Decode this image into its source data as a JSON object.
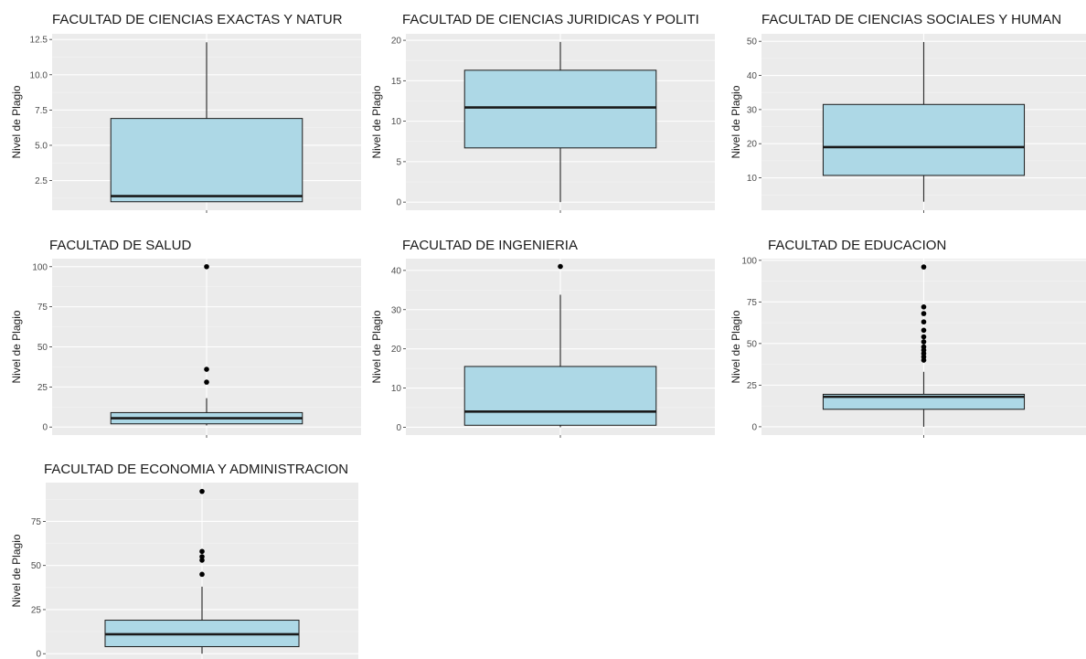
{
  "chart_data": [
    {
      "type": "boxplot",
      "title": "FACULTAD DE CIENCIAS EXACTAS Y NATUR",
      "ylabel": "Nivel de Plagio",
      "ylim": [
        0.4,
        12.9
      ],
      "yticks": [
        2.5,
        5.0,
        7.5,
        10.0,
        12.5
      ],
      "ytick_labels": [
        "2.5",
        "5.0",
        "7.5",
        "10.0",
        "12.5"
      ],
      "box": {
        "min": 1.0,
        "q1": 1.0,
        "median": 1.4,
        "q3": 6.9,
        "max": 12.3
      },
      "outliers": []
    },
    {
      "type": "boxplot",
      "title": "FACULTAD DE CIENCIAS JURIDICAS Y POLITI",
      "ylabel": "Nivel de Plagio",
      "ylim": [
        -1,
        20.8
      ],
      "yticks": [
        0,
        5,
        10,
        15,
        20
      ],
      "ytick_labels": [
        "0",
        "5",
        "10",
        "15",
        "20"
      ],
      "box": {
        "min": 0,
        "q1": 6.7,
        "median": 11.7,
        "q3": 16.3,
        "max": 19.8
      },
      "outliers": []
    },
    {
      "type": "boxplot",
      "title": "FACULTAD DE CIENCIAS SOCIALES Y HUMAN",
      "ylabel": "Nivel de Plagio",
      "ylim": [
        0.5,
        52.2
      ],
      "yticks": [
        10,
        20,
        30,
        40,
        50
      ],
      "ytick_labels": [
        "10",
        "20",
        "30",
        "40",
        "50"
      ],
      "box": {
        "min": 3.0,
        "q1": 10.7,
        "median": 19.0,
        "q3": 31.5,
        "max": 49.8
      },
      "outliers": []
    },
    {
      "type": "boxplot",
      "title": "FACULTAD DE SALUD",
      "ylabel": "Nivel de Plagio",
      "ylim": [
        -5,
        105
      ],
      "yticks": [
        0,
        25,
        50,
        75,
        100
      ],
      "ytick_labels": [
        "0",
        "25",
        "50",
        "75",
        "100"
      ],
      "box": {
        "min": 1.0,
        "q1": 2.0,
        "median": 5.5,
        "q3": 9.0,
        "max": 18.0
      },
      "outliers": [
        28,
        36,
        100
      ]
    },
    {
      "type": "boxplot",
      "title": "FACULTAD DE INGENIERIA",
      "ylabel": "Nivel de Plagio",
      "ylim": [
        -2,
        43
      ],
      "yticks": [
        0,
        10,
        20,
        30,
        40
      ],
      "ytick_labels": [
        "0",
        "10",
        "20",
        "30",
        "40"
      ],
      "box": {
        "min": 0,
        "q1": 0.5,
        "median": 4.0,
        "q3": 15.5,
        "max": 33.8
      },
      "outliers": [
        41
      ]
    },
    {
      "type": "boxplot",
      "title": "FACULTAD DE EDUCACION",
      "ylabel": "Nivel de Plagio",
      "ylim": [
        -5,
        101
      ],
      "yticks": [
        0,
        25,
        50,
        75,
        100
      ],
      "ytick_labels": [
        "0",
        "25",
        "50",
        "75",
        "100"
      ],
      "box": {
        "min": 0,
        "q1": 10.5,
        "median": 18.0,
        "q3": 19.5,
        "max": 33.0
      },
      "outliers": [
        40,
        42,
        44,
        46,
        48,
        51,
        54,
        58,
        63,
        68,
        72,
        96
      ]
    },
    {
      "type": "boxplot",
      "title": "FACULTAD DE ECONOMIA Y ADMINISTRACION",
      "ylabel": "Nivel de Plagio",
      "ylim": [
        -3,
        97
      ],
      "yticks": [
        0,
        25,
        50,
        75
      ],
      "ytick_labels": [
        "0",
        "25",
        "50",
        "75"
      ],
      "box": {
        "min": 0,
        "q1": 4.0,
        "median": 11.0,
        "q3": 19.0,
        "max": 38.0
      },
      "outliers": [
        45,
        53,
        55,
        58,
        92
      ]
    }
  ],
  "colors": {
    "panel_bg": "#ebebeb",
    "grid_major": "#ffffff",
    "grid_minor": "#f4f4f4",
    "box_fill": "#add8e6",
    "box_stroke": "#1a1a1a",
    "whisker": "#333333",
    "outlier": "#000000",
    "tick_text": "#4d4d4d",
    "title_text": "#1a1a1a"
  }
}
